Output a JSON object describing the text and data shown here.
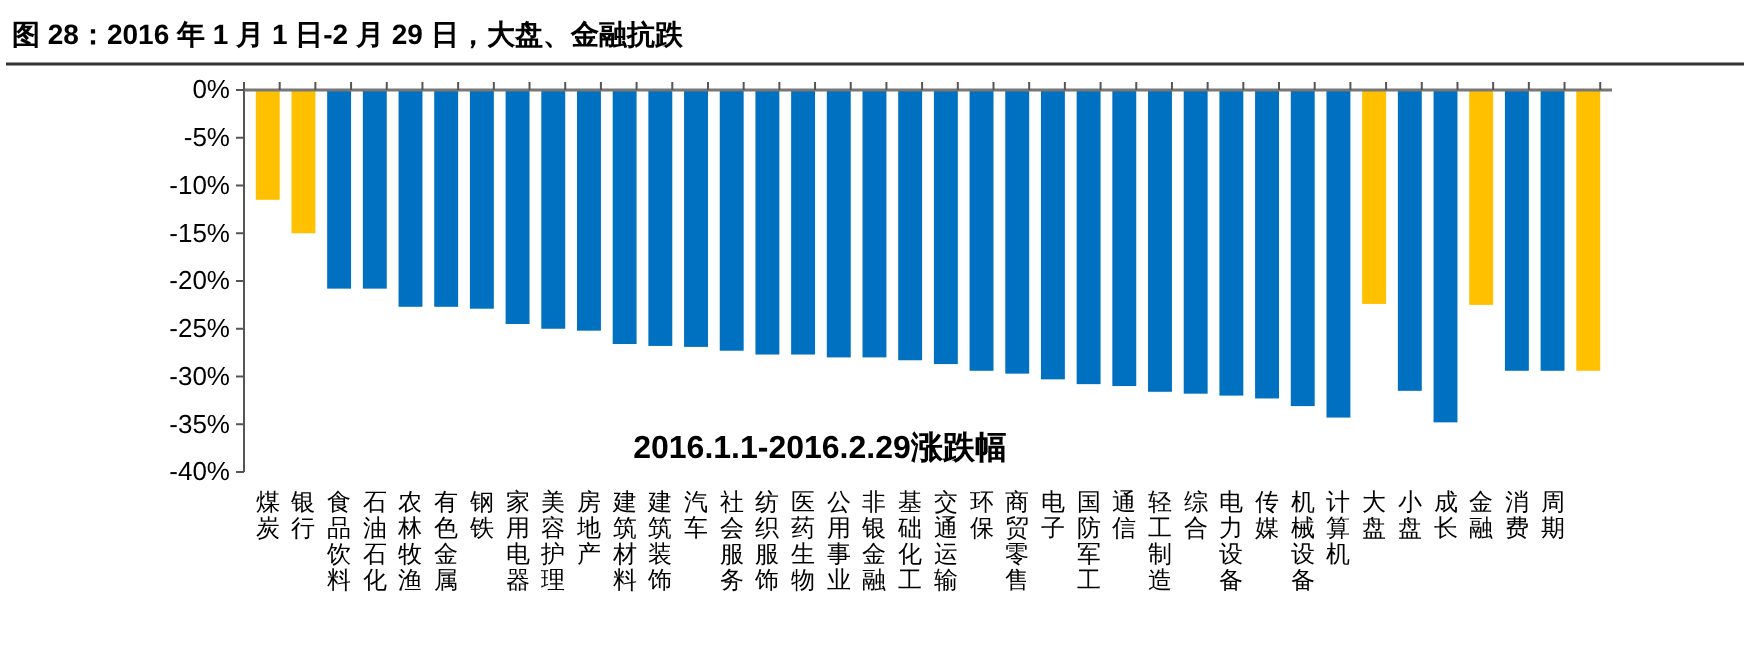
{
  "chart_data": {
    "type": "bar",
    "title": "图 28：2016 年 1 月 1 日-2 月 29 日，大盘、金融抗跌",
    "annotations": [
      "2016.1.1-2016.2.29涨跌幅"
    ],
    "categories": [
      "煤炭",
      "银行",
      "食品饮料",
      "石油石化",
      "农林牧渔",
      "有色金属",
      "钢铁",
      "家用电器",
      "美容护理",
      "房地产",
      "建筑材料",
      "建筑装饰",
      "汽车",
      "社会服务",
      "纺织服饰",
      "医药生物",
      "公用事业",
      "非银金融",
      "基础化工",
      "交通运输",
      "环保",
      "商贸零售",
      "电子",
      "国防军工",
      "通信",
      "轻工制造",
      "综合",
      "电力设备",
      "传媒",
      "机械设备",
      "计算机",
      "大盘",
      "小盘",
      "成长",
      "金融",
      "消费",
      "周期",
      null
    ],
    "values": [
      -11.5,
      -15.0,
      -20.8,
      -20.8,
      -22.7,
      -22.7,
      -22.9,
      -24.5,
      -25.0,
      -25.2,
      -26.6,
      -26.8,
      -26.9,
      -27.3,
      -27.7,
      -27.7,
      -28.0,
      -28.0,
      -28.3,
      -28.7,
      -29.4,
      -29.7,
      -30.3,
      -30.8,
      -31.0,
      -31.6,
      -31.8,
      -32.0,
      -32.3,
      -33.1,
      -34.3,
      -22.4,
      -31.5,
      -34.8,
      -22.5,
      -29.4,
      -29.4,
      -29.4
    ],
    "colors": [
      "#ffc000",
      "#ffc000",
      "#0070c0",
      "#0070c0",
      "#0070c0",
      "#0070c0",
      "#0070c0",
      "#0070c0",
      "#0070c0",
      "#0070c0",
      "#0070c0",
      "#0070c0",
      "#0070c0",
      "#0070c0",
      "#0070c0",
      "#0070c0",
      "#0070c0",
      "#0070c0",
      "#0070c0",
      "#0070c0",
      "#0070c0",
      "#0070c0",
      "#0070c0",
      "#0070c0",
      "#0070c0",
      "#0070c0",
      "#0070c0",
      "#0070c0",
      "#0070c0",
      "#0070c0",
      "#0070c0",
      "#ffc000",
      "#0070c0",
      "#0070c0",
      "#ffc000",
      "#0070c0",
      "#0070c0",
      "#ffc000"
    ],
    "ylim": [
      -40,
      0
    ],
    "yticks": [
      {
        "value": 0,
        "label": "0%"
      },
      {
        "value": -5,
        "label": "-5%"
      },
      {
        "value": -10,
        "label": "-10%"
      },
      {
        "value": -15,
        "label": "-15%"
      },
      {
        "value": -20,
        "label": "-20%"
      },
      {
        "value": -25,
        "label": "-25%"
      },
      {
        "value": -30,
        "label": "-30%"
      },
      {
        "value": -35,
        "label": "-35%"
      },
      {
        "value": -40,
        "label": "-40%"
      }
    ],
    "grid": false
  }
}
